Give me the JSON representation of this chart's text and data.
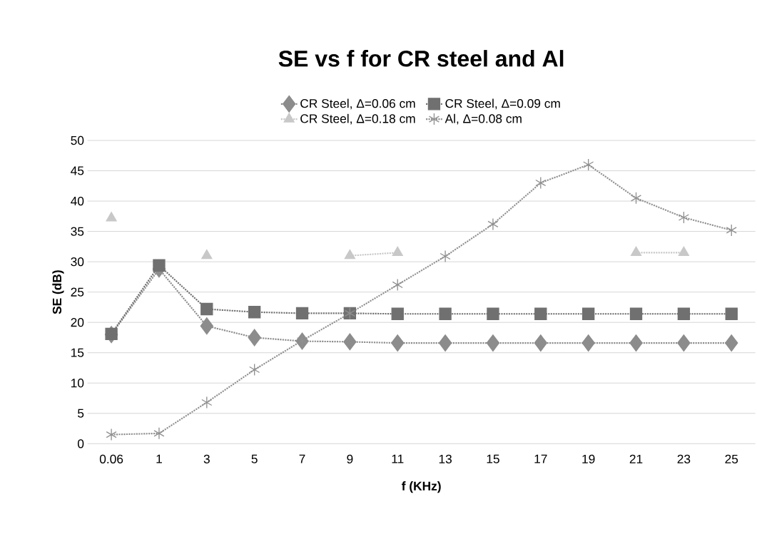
{
  "chart_data": {
    "type": "line",
    "title": "SE vs f for CR steel and Al",
    "xlabel": "f (KHz)",
    "ylabel": "SE (dB)",
    "categories": [
      "0.06",
      "1",
      "3",
      "5",
      "7",
      "9",
      "11",
      "13",
      "15",
      "17",
      "19",
      "21",
      "23",
      "25"
    ],
    "series": [
      {
        "name": "CR Steel, Δ=0.06 cm",
        "color": "#8c8c8c",
        "marker": "diamond",
        "values": [
          18,
          28.8,
          19.4,
          17.5,
          16.9,
          16.8,
          16.6,
          16.6,
          16.6,
          16.6,
          16.6,
          16.6,
          16.6,
          16.6
        ]
      },
      {
        "name": "CR Steel, Δ=0.09 cm",
        "color": "#707070",
        "marker": "square",
        "values": [
          18.1,
          29.4,
          22.2,
          21.7,
          21.5,
          21.5,
          21.4,
          21.4,
          21.4,
          21.4,
          21.4,
          21.4,
          21.4,
          21.4
        ]
      },
      {
        "name": "CR Steel, Δ=0.18 cm",
        "color": "#c8c8c8",
        "marker": "triangle",
        "values": [
          37.2,
          null,
          31,
          null,
          null,
          31,
          31.5,
          null,
          null,
          null,
          null,
          31.5,
          31.5,
          null
        ]
      },
      {
        "name": "Al, Δ=0.08 cm",
        "color": "#909090",
        "marker": "cross",
        "values": [
          1.5,
          1.7,
          6.8,
          12.2,
          17,
          21.5,
          26.2,
          30.9,
          36.2,
          43,
          46,
          40.5,
          37.3,
          35.2
        ]
      }
    ],
    "ylim": [
      0,
      50
    ],
    "yticks": [
      0,
      5,
      10,
      15,
      20,
      25,
      30,
      35,
      40,
      45,
      50
    ],
    "grid": "y",
    "legend": "top",
    "line_style": "dotted"
  }
}
